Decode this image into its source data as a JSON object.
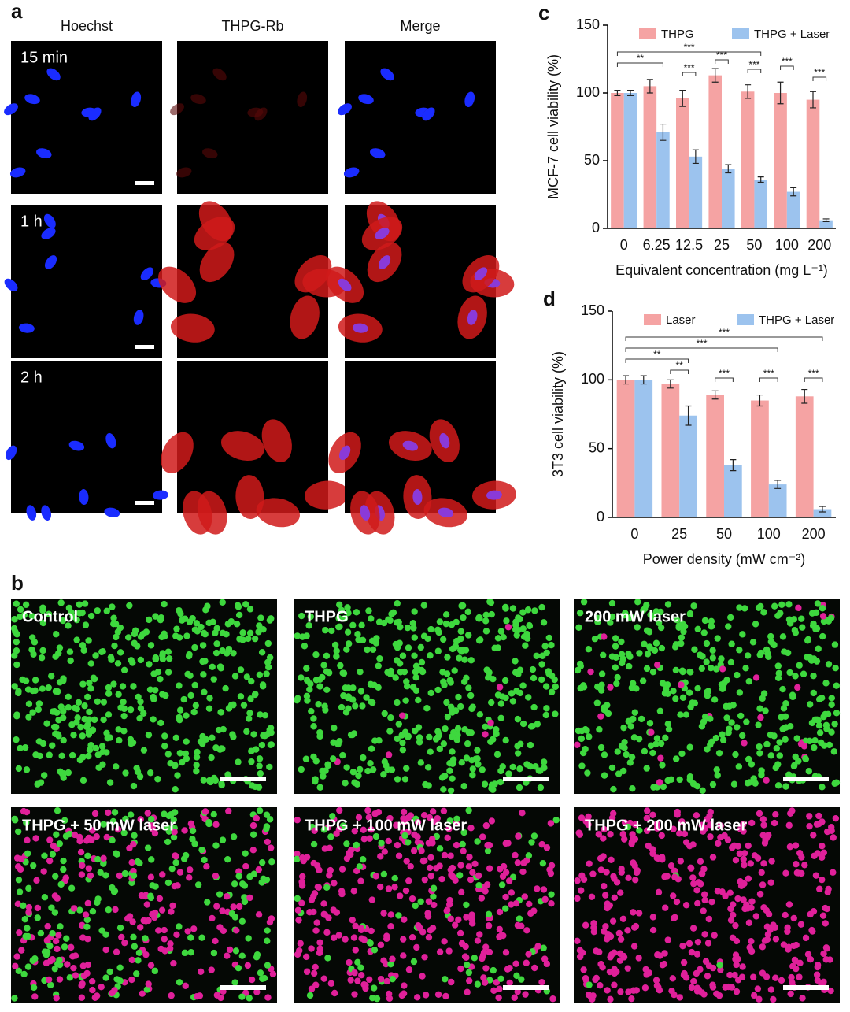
{
  "panel_a": {
    "label": "a",
    "columns": [
      "Hoechst",
      "THPG-Rb",
      "Merge"
    ],
    "rows": [
      "15 min",
      "1 h",
      "2 h"
    ]
  },
  "panel_b": {
    "label": "b",
    "images": [
      "Control",
      "THPG",
      "200 mW laser",
      "THPG + 50 mW laser",
      "THPG + 100 mW laser",
      "THPG + 200 mW laser"
    ]
  },
  "chart_data": [
    {
      "type": "bar",
      "label": "c",
      "ylabel": "MCF-7 cell viability (%)",
      "xlabel": "Equivalent concentration (mg L⁻¹)",
      "categories": [
        "0",
        "6.25",
        "12.5",
        "25",
        "50",
        "100",
        "200"
      ],
      "series": [
        {
          "name": "THPG",
          "color": "#f5a3a3",
          "values": [
            100,
            105,
            96,
            113,
            101,
            100,
            95
          ],
          "errors": [
            2,
            5,
            6,
            5,
            5,
            8,
            6
          ]
        },
        {
          "name": "THPG + Laser",
          "color": "#9cc3ee",
          "values": [
            100,
            71,
            53,
            44,
            36,
            27,
            6
          ],
          "errors": [
            2,
            6,
            5,
            3,
            2,
            3,
            1
          ]
        }
      ],
      "ylim": [
        0,
        150
      ],
      "yticks": [
        0,
        50,
        100,
        150
      ],
      "annotations": [
        "**",
        "***",
        "***",
        "***",
        "***",
        "***",
        "***"
      ]
    },
    {
      "type": "bar",
      "label": "d",
      "ylabel": "3T3 cell viability (%)",
      "xlabel": "Power density (mW cm⁻²)",
      "categories": [
        "0",
        "25",
        "50",
        "100",
        "200"
      ],
      "series": [
        {
          "name": "Laser",
          "color": "#f5a3a3",
          "values": [
            100,
            97,
            89,
            85,
            88
          ],
          "errors": [
            3,
            3,
            3,
            4,
            5
          ]
        },
        {
          "name": "THPG + Laser",
          "color": "#9cc3ee",
          "values": [
            100,
            74,
            38,
            24,
            6
          ],
          "errors": [
            3,
            7,
            4,
            3,
            2
          ]
        }
      ],
      "ylim": [
        0,
        150
      ],
      "yticks": [
        0,
        50,
        100,
        150
      ],
      "annotations": [
        "***",
        "***",
        "**",
        "**",
        "***",
        "***",
        "***"
      ]
    }
  ]
}
